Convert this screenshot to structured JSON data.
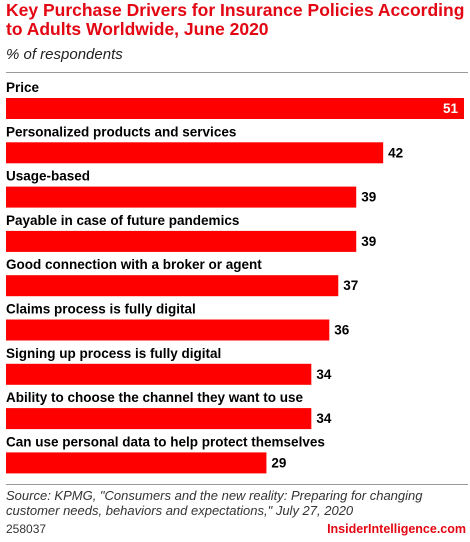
{
  "header": {
    "title": "Key Purchase Drivers for Insurance Policies According to Adults Worldwide, June 2020",
    "subtitle": "% of respondents"
  },
  "footer": {
    "source": "Source: KPMG, \"Consumers and the new reality: Preparing for changing customer needs, behaviors and expectations,\" July 27, 2020",
    "chart_id": "258037",
    "brand": "InsiderIntelligence.com"
  },
  "colors": {
    "bar": "#ff0000",
    "title": "#e30613",
    "value_inside": "#ffffff",
    "value_outside": "#000000"
  },
  "chart_data": {
    "type": "bar",
    "orientation": "horizontal",
    "title": "Key Purchase Drivers for Insurance Policies According to Adults Worldwide, June 2020",
    "subtitle": "% of respondents",
    "categories": [
      "Price",
      "Personalized products and services",
      "Usage-based",
      "Payable in case of future pandemics",
      "Good connection with a broker or agent",
      "Claims process is fully digital",
      "Signing up process is fully digital",
      "Ability to choose the channel they want to use",
      "Can use personal data to help protect themselves"
    ],
    "values": [
      51,
      42,
      39,
      39,
      37,
      36,
      34,
      34,
      29
    ],
    "xlim": [
      0,
      51
    ],
    "grid": false,
    "legend": "none"
  }
}
